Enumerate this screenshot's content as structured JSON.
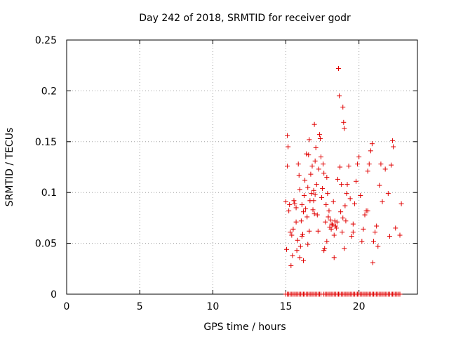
{
  "chart_data": {
    "type": "scatter",
    "title": "Day 242 of 2018, SRMTID for receiver godr",
    "xlabel": "GPS time / hours",
    "ylabel": "SRMTID / TECUs",
    "xlim": [
      0,
      24
    ],
    "ylim": [
      0,
      0.25
    ],
    "x_ticks": [
      0,
      5,
      10,
      15,
      20
    ],
    "x_tick_labels": [
      "0",
      "5",
      "10",
      "15",
      "20"
    ],
    "y_ticks": [
      0,
      0.05,
      0.1,
      0.15,
      0.2,
      0.25
    ],
    "y_tick_labels": [
      "0",
      "0.05",
      "0.1",
      "0.15",
      "0.2",
      "0.25"
    ],
    "grid": true,
    "marker": "+",
    "series": [
      {
        "name": "SRMTID",
        "color": "#e00000",
        "points": [
          [
            15.0,
            0.091
          ],
          [
            15.05,
            0.044
          ],
          [
            15.1,
            0.126
          ],
          [
            15.1,
            0.156
          ],
          [
            15.15,
            0.145
          ],
          [
            15.2,
            0.082
          ],
          [
            15.25,
            0.088
          ],
          [
            15.3,
            0.061
          ],
          [
            15.35,
            0.028
          ],
          [
            15.4,
            0.058
          ],
          [
            15.45,
            0.038
          ],
          [
            15.5,
            0.064
          ],
          [
            15.55,
            0.092
          ],
          [
            15.6,
            0.089
          ],
          [
            15.7,
            0.071
          ],
          [
            15.75,
            0.043
          ],
          [
            15.8,
            0.053
          ],
          [
            15.85,
            0.128
          ],
          [
            15.9,
            0.117
          ],
          [
            15.95,
            0.103
          ],
          [
            15.95,
            0.036
          ],
          [
            16.0,
            0.047
          ],
          [
            16.05,
            0.072
          ],
          [
            16.1,
            0.057
          ],
          [
            16.1,
            0.088
          ],
          [
            16.15,
            0.059
          ],
          [
            16.2,
            0.081
          ],
          [
            16.25,
            0.097
          ],
          [
            16.3,
            0.112
          ],
          [
            16.35,
            0.084
          ],
          [
            16.4,
            0.138
          ],
          [
            16.45,
            0.076
          ],
          [
            16.5,
            0.105
          ],
          [
            16.5,
            0.049
          ],
          [
            16.55,
            0.137
          ],
          [
            16.6,
            0.062
          ],
          [
            16.65,
            0.092
          ],
          [
            16.7,
            0.118
          ],
          [
            16.75,
            0.099
          ],
          [
            16.8,
            0.126
          ],
          [
            16.85,
            0.083
          ],
          [
            16.9,
            0.102
          ],
          [
            16.95,
            0.167
          ],
          [
            16.95,
            0.079
          ],
          [
            17.0,
            0.131
          ],
          [
            17.05,
            0.144
          ],
          [
            17.1,
            0.108
          ],
          [
            17.15,
            0.078
          ],
          [
            17.2,
            0.062
          ],
          [
            17.25,
            0.123
          ],
          [
            17.3,
            0.157
          ],
          [
            17.35,
            0.153
          ],
          [
            17.4,
            0.135
          ],
          [
            17.45,
            0.095
          ],
          [
            17.5,
            0.104
          ],
          [
            17.55,
            0.128
          ],
          [
            17.6,
            0.119
          ],
          [
            17.65,
            0.045
          ],
          [
            17.7,
            0.071
          ],
          [
            17.75,
            0.088
          ],
          [
            17.8,
            0.052
          ],
          [
            17.85,
            0.099
          ],
          [
            17.9,
            0.076
          ],
          [
            17.95,
            0.082
          ],
          [
            18.0,
            0.066
          ],
          [
            18.05,
            0.073
          ],
          [
            18.1,
            0.064
          ],
          [
            18.15,
            0.069
          ],
          [
            18.2,
            0.068
          ],
          [
            18.25,
            0.091
          ],
          [
            18.3,
            0.058
          ],
          [
            18.35,
            0.072
          ],
          [
            18.4,
            0.067
          ],
          [
            18.45,
            0.065
          ],
          [
            18.5,
            0.071
          ],
          [
            18.55,
            0.113
          ],
          [
            18.6,
            0.222
          ],
          [
            18.65,
            0.195
          ],
          [
            18.7,
            0.125
          ],
          [
            18.75,
            0.081
          ],
          [
            18.8,
            0.108
          ],
          [
            18.85,
            0.061
          ],
          [
            18.9,
            0.184
          ],
          [
            18.95,
            0.169
          ],
          [
            19.0,
            0.163
          ],
          [
            19.05,
            0.087
          ],
          [
            19.1,
            0.072
          ],
          [
            19.15,
            0.099
          ],
          [
            19.2,
            0.108
          ],
          [
            19.3,
            0.126
          ],
          [
            19.4,
            0.094
          ],
          [
            19.5,
            0.057
          ],
          [
            19.6,
            0.061
          ],
          [
            19.7,
            0.089
          ],
          [
            19.8,
            0.111
          ],
          [
            19.9,
            0.128
          ],
          [
            20.0,
            0.135
          ],
          [
            20.1,
            0.097
          ],
          [
            20.2,
            0.052
          ],
          [
            20.3,
            0.064
          ],
          [
            20.4,
            0.078
          ],
          [
            20.5,
            0.082
          ],
          [
            20.6,
            0.121
          ],
          [
            20.7,
            0.128
          ],
          [
            20.8,
            0.141
          ],
          [
            20.9,
            0.148
          ],
          [
            20.95,
            0.031
          ],
          [
            21.0,
            0.052
          ],
          [
            21.1,
            0.061
          ],
          [
            21.2,
            0.067
          ],
          [
            21.3,
            0.047
          ],
          [
            21.4,
            0.107
          ],
          [
            21.5,
            0.128
          ],
          [
            21.6,
            0.091
          ],
          [
            21.8,
            0.123
          ],
          [
            22.0,
            0.099
          ],
          [
            22.1,
            0.057
          ],
          [
            22.2,
            0.127
          ],
          [
            22.3,
            0.151
          ],
          [
            22.35,
            0.145
          ],
          [
            22.5,
            0.065
          ],
          [
            22.8,
            0.058
          ],
          [
            22.9,
            0.089
          ],
          [
            16.2,
            0.033
          ],
          [
            17.0,
            0.098
          ],
          [
            18.3,
            0.036
          ],
          [
            19.0,
            0.045
          ],
          [
            16.6,
            0.152
          ],
          [
            17.6,
            0.043
          ],
          [
            18.9,
            0.075
          ],
          [
            15.7,
            0.085
          ],
          [
            16.9,
            0.092
          ],
          [
            17.8,
            0.115
          ],
          [
            19.6,
            0.069
          ],
          [
            20.6,
            0.082
          ]
        ],
        "zero_points_x": [
          15.0,
          15.1,
          15.2,
          15.3,
          15.4,
          15.5,
          15.6,
          15.7,
          15.8,
          15.9,
          16.0,
          16.1,
          16.2,
          16.3,
          16.4,
          16.5,
          16.6,
          16.7,
          16.8,
          16.9,
          17.0,
          17.1,
          17.2,
          17.3,
          17.4,
          17.6,
          17.7,
          17.8,
          17.9,
          18.0,
          18.1,
          18.2,
          18.3,
          18.4,
          18.5,
          18.6,
          18.7,
          18.8,
          18.9,
          19.0,
          19.1,
          19.2,
          19.3,
          19.4,
          19.5,
          19.6,
          19.7,
          19.8,
          19.9,
          20.0,
          20.1,
          20.2,
          20.3,
          20.4,
          20.5,
          20.6,
          20.7,
          20.8,
          20.9,
          21.0,
          21.1,
          21.2,
          21.3,
          21.4,
          21.5,
          21.6,
          21.7,
          21.8,
          21.9,
          22.0,
          22.1,
          22.2,
          22.3,
          22.4,
          22.5,
          22.6,
          22.7,
          22.8
        ]
      }
    ]
  }
}
